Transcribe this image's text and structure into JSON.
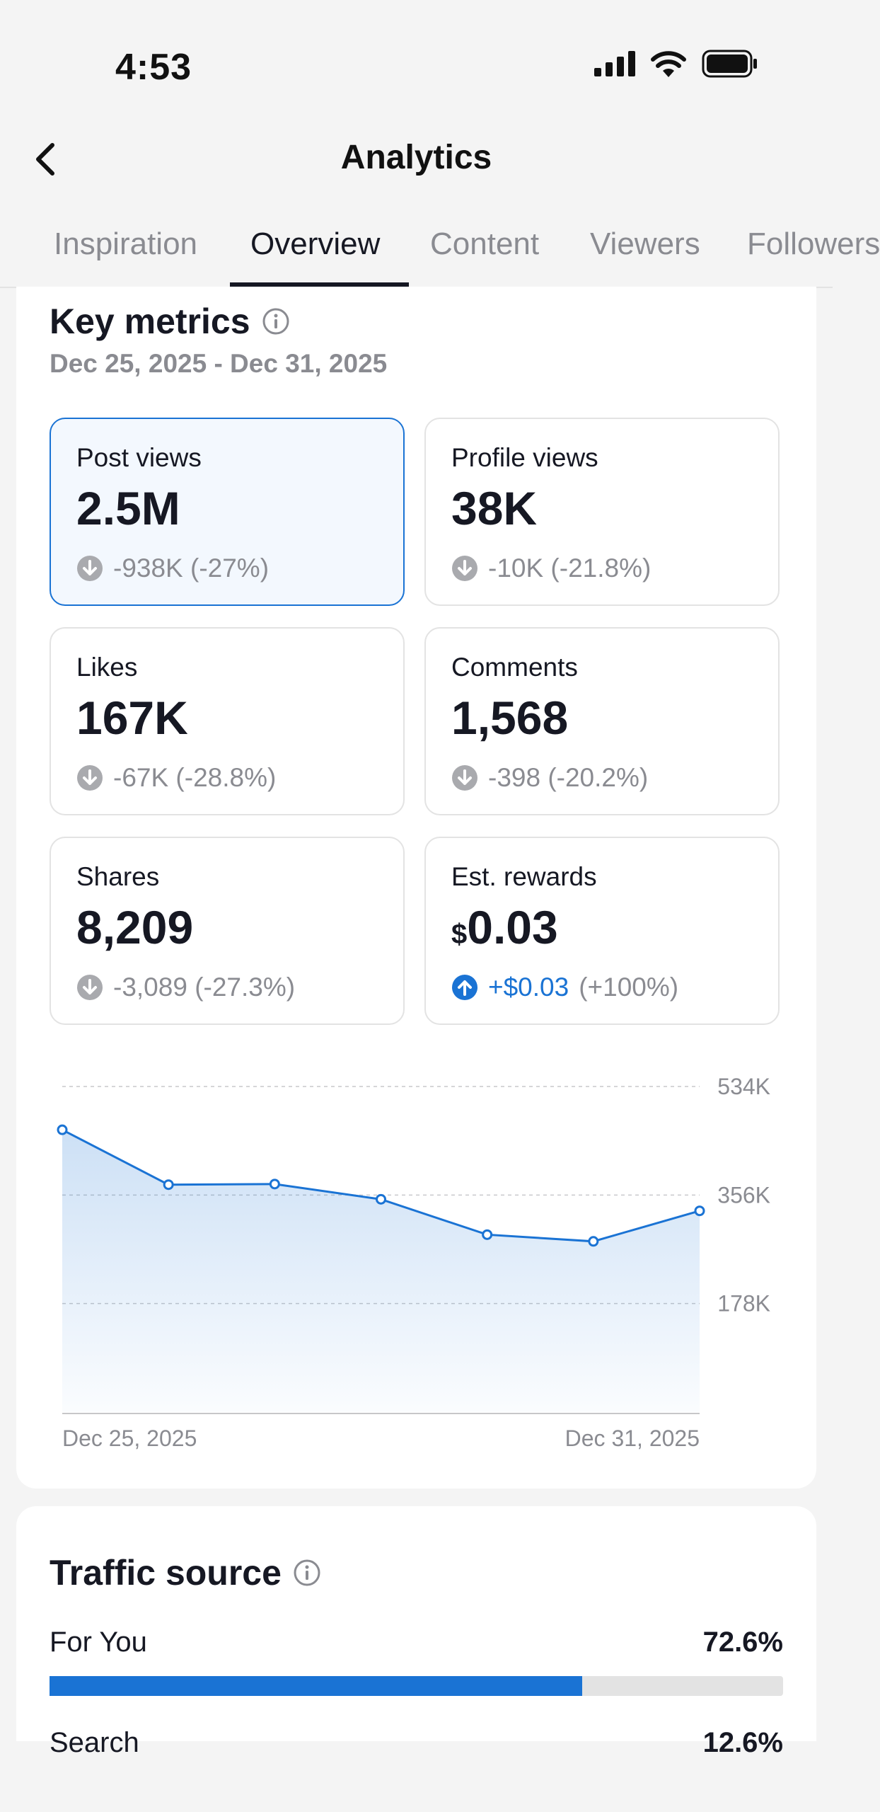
{
  "status_bar": {
    "time": "4:53"
  },
  "nav": {
    "title": "Analytics"
  },
  "tabs": [
    "Inspiration",
    "Overview",
    "Content",
    "Viewers",
    "Followers"
  ],
  "key_metrics": {
    "title": "Key metrics",
    "date_range": "Dec 25, 2025 - Dec 31, 2025",
    "cards": [
      {
        "label": "Post views",
        "value": "2.5M",
        "change": "-938K (-27%)"
      },
      {
        "label": "Profile views",
        "value": "38K",
        "change": "-10K (-21.8%)"
      },
      {
        "label": "Likes",
        "value": "167K",
        "change": "-67K (-28.8%)"
      },
      {
        "label": "Comments",
        "value": "1,568",
        "change": "-398 (-20.2%)"
      },
      {
        "label": "Shares",
        "value": "8,209",
        "change": "-3,089 (-27.3%)"
      },
      {
        "label": "Est. rewards",
        "currency": "$",
        "value": "0.03",
        "change_amount": "+$0.03",
        "change_pct": "(+100%)"
      }
    ]
  },
  "chart_data": {
    "type": "area",
    "x": [
      "Dec 25, 2025",
      "Dec 26, 2025",
      "Dec 27, 2025",
      "Dec 28, 2025",
      "Dec 29, 2025",
      "Dec 30, 2025",
      "Dec 31, 2025"
    ],
    "values": [
      463000,
      373000,
      374000,
      349000,
      291000,
      280000,
      330000
    ],
    "yticks": [
      178000,
      356000,
      534000
    ],
    "ytick_labels": [
      "178K",
      "356K",
      "534K"
    ],
    "ylim": [
      0,
      534000
    ],
    "x_tick_labels": [
      "Dec 25, 2025",
      "Dec 31, 2025"
    ],
    "series_name": "Post views",
    "color": "#1a73d4"
  },
  "traffic_source": {
    "title": "Traffic source",
    "rows": [
      {
        "label": "For You",
        "value": "72.6%",
        "fraction": 0.726
      },
      {
        "label": "Search",
        "value": "12.6%"
      }
    ]
  },
  "colors": {
    "accent": "#1a73d4",
    "muted": "#8a8b91",
    "text": "#161823"
  }
}
